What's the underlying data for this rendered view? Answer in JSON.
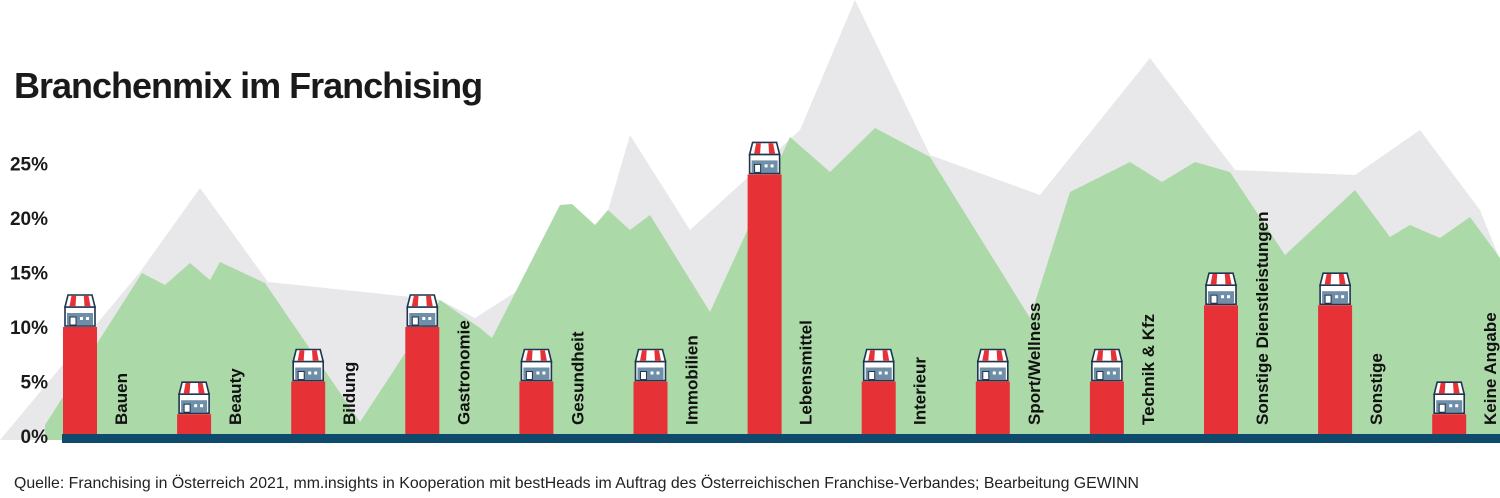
{
  "chart_data": {
    "type": "bar",
    "title": "Branchenmix im Franchising",
    "categories": [
      "Bauen",
      "Beauty",
      "Bildung",
      "Gastronomie",
      "Gesundheit",
      "Immobilien",
      "Lebensmittel",
      "Interieur",
      "Sport/Wellness",
      "Technik & Kfz",
      "Sonstige Dienstleistungen",
      "Sonstige",
      "Keine Angabe"
    ],
    "values": [
      10,
      2,
      5,
      10,
      5,
      5,
      24,
      5,
      5,
      5,
      12,
      12,
      2
    ],
    "ylim": [
      0,
      25
    ],
    "yticks": [
      0,
      5,
      10,
      15,
      20,
      25
    ],
    "ytick_labels": [
      "0%",
      "5%",
      "10%",
      "15%",
      "20%",
      "25%"
    ],
    "xlabel": "",
    "ylabel": "",
    "grid": false,
    "legend": "none",
    "source": "Quelle:  Franchising in Österreich 2021, mm.insights in Kooperation mit bestHeads im Auftrag des Österreichischen Franchise-Verbandes; Bearbeitung GEWINN",
    "colors": {
      "bar": "#e63236",
      "baseline": "#0d4a6b",
      "mountain": "#acd9a8",
      "snow": "#e8e8ea",
      "shop_blue": "#6f8fa8",
      "shop_outline": "#1f3550"
    }
  }
}
